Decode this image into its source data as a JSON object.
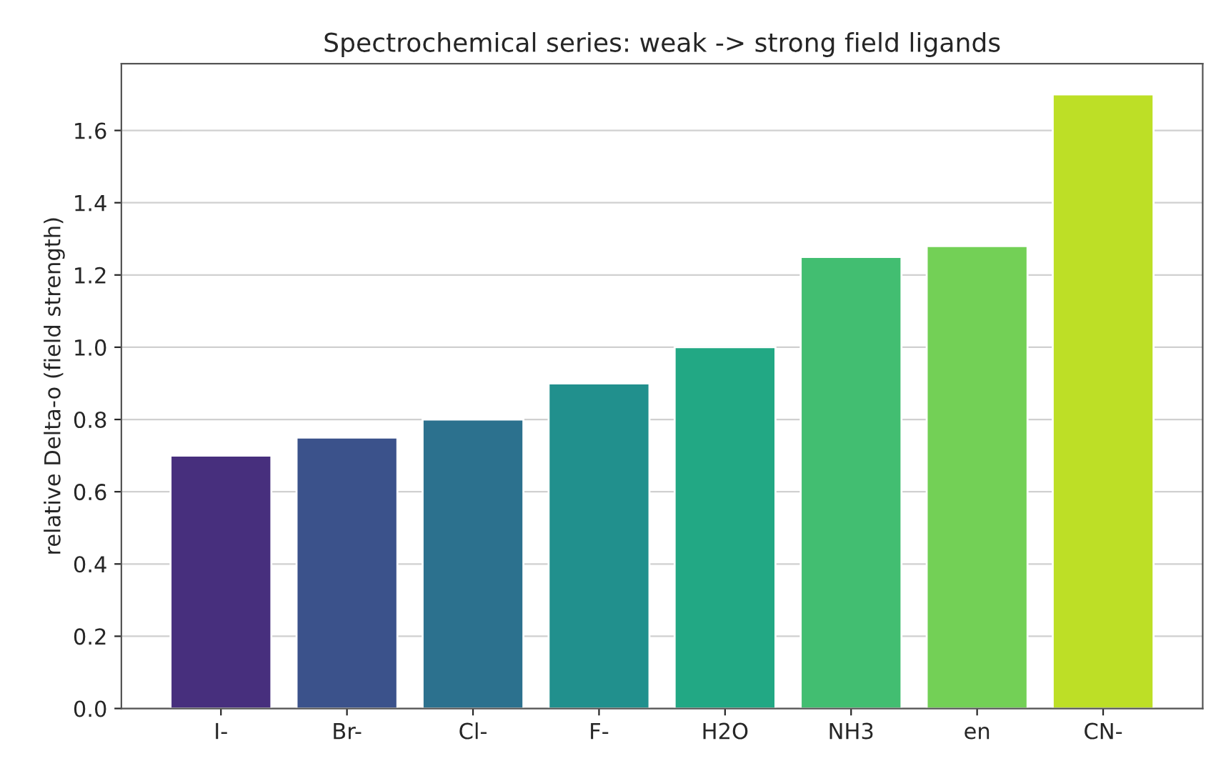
{
  "chart_data": {
    "type": "bar",
    "title": "Spectrochemical series: weak -> strong field ligands",
    "ylabel": "relative Delta-o (field strength)",
    "categories": [
      "I-",
      "Br-",
      "Cl-",
      "F-",
      "H2O",
      "NH3",
      "en",
      "CN-"
    ],
    "values": [
      0.7,
      0.75,
      0.8,
      0.9,
      1.0,
      1.25,
      1.28,
      1.7
    ],
    "colors": [
      "#472f7d",
      "#3b528b",
      "#2c718e",
      "#21908d",
      "#22a884",
      "#42be71",
      "#73d056",
      "#bddf26"
    ],
    "ylim": [
      0,
      1.785
    ],
    "yticks": [
      {
        "value": 0,
        "label": "0.0"
      },
      {
        "value": 0.2,
        "label": "0.2"
      },
      {
        "value": 0.4,
        "label": "0.4"
      },
      {
        "value": 0.6,
        "label": "0.6"
      },
      {
        "value": 0.8,
        "label": "0.8"
      },
      {
        "value": 1.0,
        "label": "1.0"
      },
      {
        "value": 1.2,
        "label": "1.2"
      },
      {
        "value": 1.4,
        "label": "1.4"
      },
      {
        "value": 1.6,
        "label": "1.6"
      }
    ],
    "grid": "y"
  }
}
